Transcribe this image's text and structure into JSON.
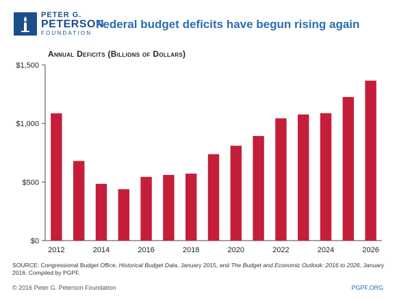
{
  "header": {
    "logo_line1": "PETER G.",
    "logo_line2": "PETERSON",
    "logo_line3": "FOUNDATION",
    "logo_icon": "torch-icon",
    "title": "Federal budget deficits have begun rising again"
  },
  "colors": {
    "bar": "#c41e3a",
    "brand": "#1a4f8b",
    "title": "#2b6cb0"
  },
  "chart_data": {
    "type": "bar",
    "title": "",
    "ylabel": "Annual Deficits (Billions of Dollars)",
    "xlabel": "",
    "categories": [
      "2012",
      "2013",
      "2014",
      "2015",
      "2016",
      "2017",
      "2018",
      "2019",
      "2020",
      "2021",
      "2022",
      "2023",
      "2024",
      "2025",
      "2026"
    ],
    "x_tick_labels": [
      "2012",
      "2014",
      "2016",
      "2018",
      "2020",
      "2022",
      "2024",
      "2026"
    ],
    "y_tick_labels": [
      "$0",
      "$500",
      "$1,000",
      "$1,500"
    ],
    "y_ticks": [
      0,
      500,
      1000,
      1500
    ],
    "values": [
      1087,
      680,
      485,
      439,
      544,
      561,
      572,
      738,
      810,
      893,
      1044,
      1077,
      1088,
      1226,
      1366
    ],
    "ylim": [
      0,
      1500
    ],
    "grid": false,
    "legend": "none"
  },
  "source": {
    "prefix": "SOURCE: Congressional Budget Office, ",
    "italic1": "Historical Budget Data",
    "mid": ", January 2015, and ",
    "italic2": "The Budget and Economic Outlook: 2016 to 2026",
    "suffix": ", January 2016. Compiled by PGPF."
  },
  "footer": {
    "copyright": "© 2016 Peter G. Peterson Foundation",
    "site": "PGPF.ORG"
  }
}
